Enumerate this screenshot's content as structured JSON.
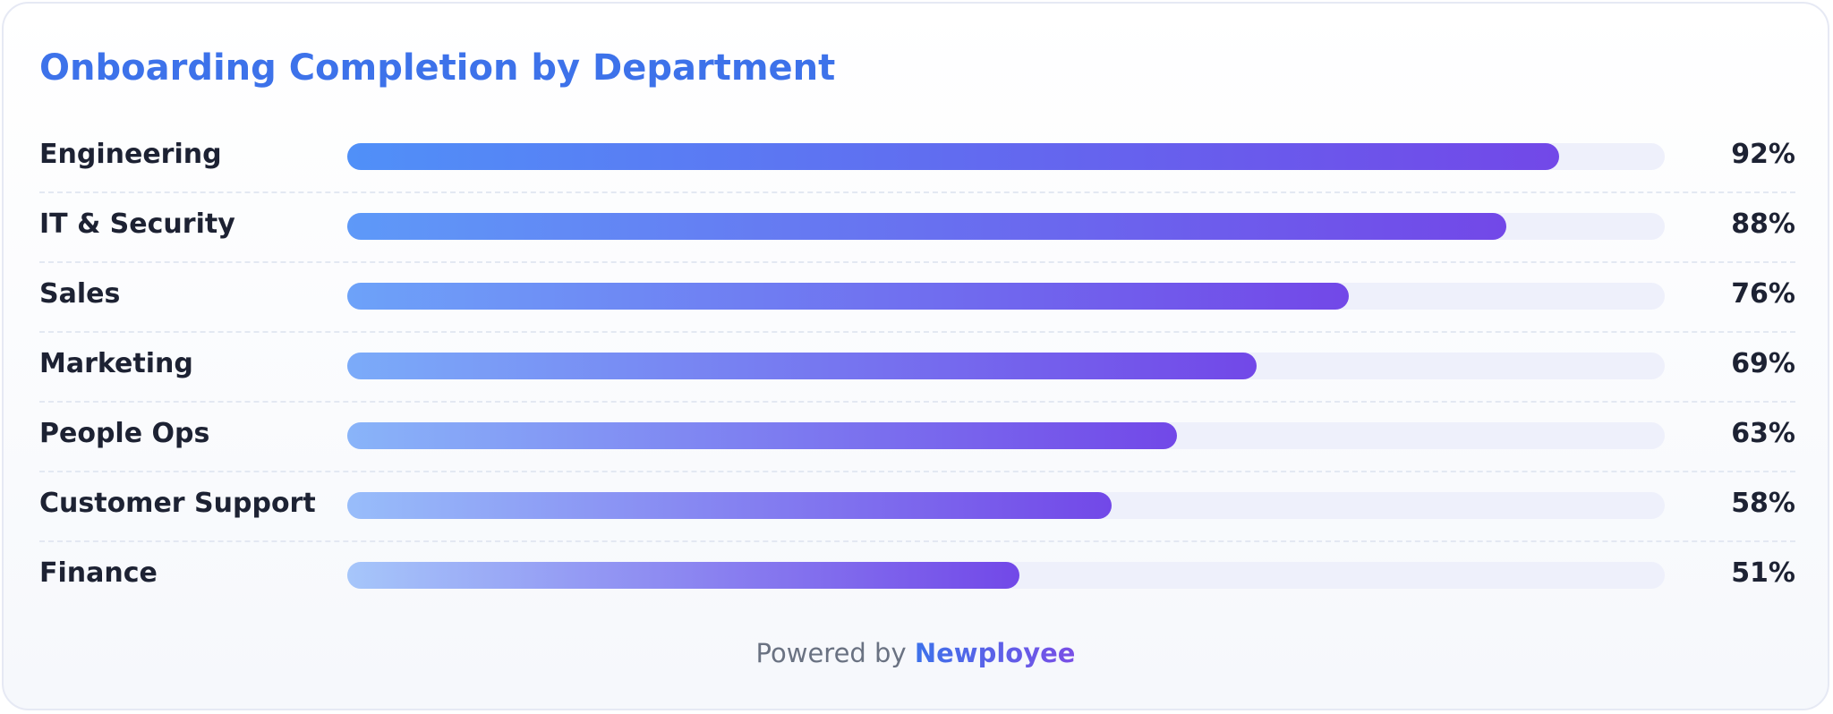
{
  "chart_data": {
    "type": "bar",
    "orientation": "horizontal",
    "title": "Onboarding Completion by Department",
    "categories": [
      "Engineering",
      "IT & Security",
      "Sales",
      "Marketing",
      "People Ops",
      "Customer Support",
      "Finance"
    ],
    "values": [
      92,
      88,
      76,
      69,
      63,
      58,
      51
    ],
    "value_labels": [
      "92%",
      "88%",
      "76%",
      "69%",
      "63%",
      "58%",
      "51%"
    ],
    "xlim": [
      0,
      100
    ],
    "colors": {
      "fill_end": "#7248e8",
      "fill_start_strong": "#5090f8",
      "fill_start_light": "#a6c6fa",
      "track": "#eef0fb"
    }
  },
  "footer": {
    "prefix": "Powered by",
    "brand": "Newployee"
  }
}
